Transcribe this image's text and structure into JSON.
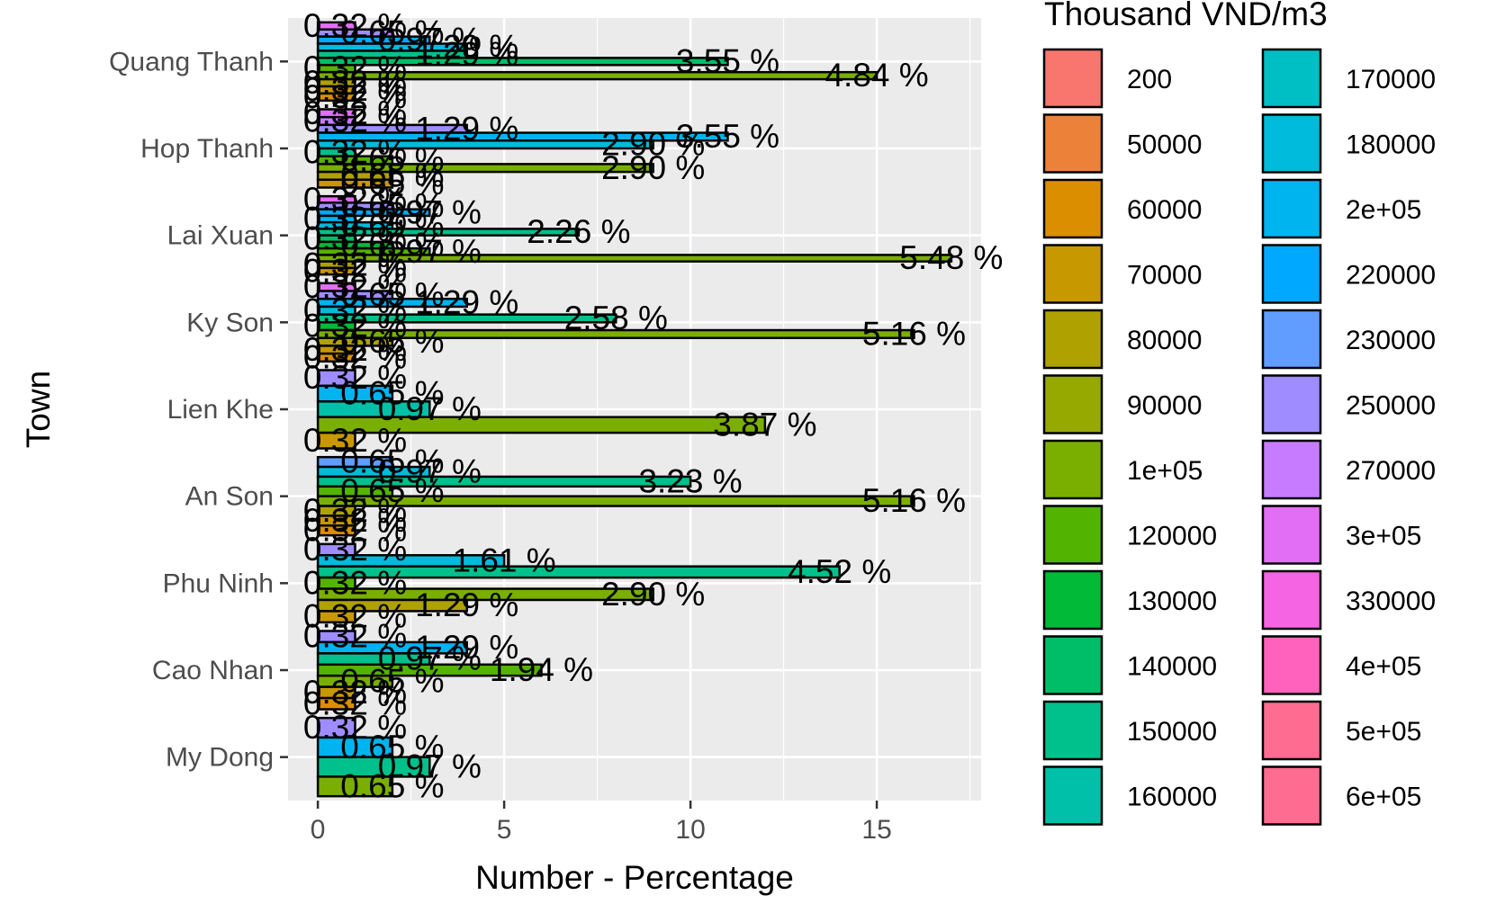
{
  "chart_data": {
    "type": "bar",
    "orientation": "horizontal",
    "xlabel": "Number - Percentage",
    "ylabel": "Town",
    "xlim": [
      -0.8,
      17.8
    ],
    "x_ticks": [
      0,
      5,
      10,
      15
    ],
    "grid": true,
    "categories": [
      "Quang Thanh",
      "Hop Thanh",
      "Lai Xuan",
      "Ky Son",
      "Lien Khe",
      "An Son",
      "Phu Ninh",
      "Cao Nhan",
      "My Dong"
    ],
    "legend": {
      "title": "Thousand VND/m3",
      "position": "right",
      "items": [
        {
          "label": "200",
          "color": "#F8766D"
        },
        {
          "label": "50000",
          "color": "#EC8239"
        },
        {
          "label": "60000",
          "color": "#DB8E00"
        },
        {
          "label": "70000",
          "color": "#C79800"
        },
        {
          "label": "80000",
          "color": "#AFA100"
        },
        {
          "label": "90000",
          "color": "#96A900"
        },
        {
          "label": "1e+05",
          "color": "#7AAF00"
        },
        {
          "label": "120000",
          "color": "#53B400"
        },
        {
          "label": "130000",
          "color": "#00BA38"
        },
        {
          "label": "140000",
          "color": "#00BE67"
        },
        {
          "label": "150000",
          "color": "#00C08B"
        },
        {
          "label": "160000",
          "color": "#00C0A9"
        },
        {
          "label": "170000",
          "color": "#00BFC4"
        },
        {
          "label": "180000",
          "color": "#00BBDB"
        },
        {
          "label": "2e+05",
          "color": "#00B4EF"
        },
        {
          "label": "220000",
          "color": "#00A9FF"
        },
        {
          "label": "230000",
          "color": "#619CFF"
        },
        {
          "label": "250000",
          "color": "#9F8CFF"
        },
        {
          "label": "270000",
          "color": "#C77CFF"
        },
        {
          "label": "3e+05",
          "color": "#E36EF6"
        },
        {
          "label": "330000",
          "color": "#F564E3"
        },
        {
          "label": "4e+05",
          "color": "#FF62BC"
        },
        {
          "label": "5e+05",
          "color": "#FF6C91"
        },
        {
          "label": "6e+05",
          "color": "#FF6C91"
        }
      ]
    },
    "series": [
      {
        "town": "Quang Thanh",
        "bars": [
          {
            "price": "300000",
            "value": 1,
            "label": "0.32 %"
          },
          {
            "price": "250000",
            "value": 2,
            "label": "0.65 %"
          },
          {
            "price": "220000",
            "value": 3,
            "label": "0.97 %"
          },
          {
            "price": "180000",
            "value": 4,
            "label": "1.29 %"
          },
          {
            "price": "150000",
            "value": 4,
            "label": "1.29 %"
          },
          {
            "price": "140000",
            "value": 11,
            "label": "3.55 %"
          },
          {
            "price": "120000",
            "value": 1,
            "label": "0.32 %"
          },
          {
            "price": "100000",
            "value": 15,
            "label": "4.84 %"
          },
          {
            "price": "80000",
            "value": 1,
            "label": "0.32 %"
          },
          {
            "price": "70000",
            "value": 1,
            "label": "0.32 %"
          },
          {
            "price": "60000",
            "value": 1,
            "label": "0.32 %"
          }
        ]
      },
      {
        "town": "Hop Thanh",
        "bars": [
          {
            "price": "300000",
            "value": 1,
            "label": "0.32 %"
          },
          {
            "price": "270000",
            "value": 1,
            "label": "0.32 %"
          },
          {
            "price": "250000",
            "value": 4,
            "label": "1.29 %"
          },
          {
            "price": "200000",
            "value": 11,
            "label": "3.55 %"
          },
          {
            "price": "180000",
            "value": 9,
            "label": "2.90 %"
          },
          {
            "price": "150000",
            "value": 1,
            "label": "0.32 %"
          },
          {
            "price": "120000",
            "value": 2,
            "label": "0.65 %"
          },
          {
            "price": "100000",
            "value": 9,
            "label": "2.90 %"
          },
          {
            "price": "80000",
            "value": 2,
            "label": "0.65 %"
          },
          {
            "price": "70000",
            "value": 2,
            "label": "0.65 %"
          }
        ]
      },
      {
        "town": "Lai Xuan",
        "bars": [
          {
            "price": "300000",
            "value": 1,
            "label": "0.32 %"
          },
          {
            "price": "250000",
            "value": 2,
            "label": "0.65 %"
          },
          {
            "price": "220000",
            "value": 3,
            "label": "0.97 %"
          },
          {
            "price": "200000",
            "value": 1,
            "label": "0.32 %"
          },
          {
            "price": "180000",
            "value": 2,
            "label": "0.65 %"
          },
          {
            "price": "150000",
            "value": 7,
            "label": "2.26 %"
          },
          {
            "price": "140000",
            "value": 1,
            "label": "0.32 %"
          },
          {
            "price": "130000",
            "value": 2,
            "label": "0.65 %"
          },
          {
            "price": "120000",
            "value": 3,
            "label": "0.97 %"
          },
          {
            "price": "100000",
            "value": 17,
            "label": "5.48 %"
          },
          {
            "price": "80000",
            "value": 1,
            "label": "0.32 %"
          },
          {
            "price": "70000",
            "value": 1,
            "label": "0.32 %"
          }
        ]
      },
      {
        "town": "Ky Son",
        "bars": [
          {
            "price": "300000",
            "value": 1,
            "label": "0.32 %"
          },
          {
            "price": "250000",
            "value": 2,
            "label": "0.65 %"
          },
          {
            "price": "200000",
            "value": 4,
            "label": "1.29 %"
          },
          {
            "price": "180000",
            "value": 1,
            "label": "0.32 %"
          },
          {
            "price": "150000",
            "value": 8,
            "label": "2.58 %"
          },
          {
            "price": "130000",
            "value": 1,
            "label": "0.32 %"
          },
          {
            "price": "100000",
            "value": 16,
            "label": "5.16 %"
          },
          {
            "price": "80000",
            "value": 2,
            "label": "0.65 %"
          },
          {
            "price": "70000",
            "value": 1,
            "label": "0.32 %"
          },
          {
            "price": "60000",
            "value": 1,
            "label": "0.32 %"
          }
        ]
      },
      {
        "town": "Lien Khe",
        "bars": [
          {
            "price": "250000",
            "value": 1,
            "label": "0.32 %"
          },
          {
            "price": "200000",
            "value": 2,
            "label": "0.65 %"
          },
          {
            "price": "160000",
            "value": 3,
            "label": "0.97 %"
          },
          {
            "price": "100000",
            "value": 12,
            "label": "3.87 %"
          },
          {
            "price": "70000",
            "value": 1,
            "label": "0.32 %"
          }
        ]
      },
      {
        "town": "An Son",
        "bars": [
          {
            "price": "230000",
            "value": 2,
            "label": "0.65 %"
          },
          {
            "price": "180000",
            "value": 3,
            "label": "0.97 %"
          },
          {
            "price": "150000",
            "value": 10,
            "label": "3.23 %"
          },
          {
            "price": "120000",
            "value": 2,
            "label": "0.65 %"
          },
          {
            "price": "100000",
            "value": 16,
            "label": "5.16 %"
          },
          {
            "price": "80000",
            "value": 1,
            "label": "0.32 %"
          },
          {
            "price": "70000",
            "value": 1,
            "label": "0.32 %"
          },
          {
            "price": "60000",
            "value": 1,
            "label": "0.32 %"
          }
        ]
      },
      {
        "town": "Phu Ninh",
        "bars": [
          {
            "price": "250000",
            "value": 1,
            "label": "0.32 %"
          },
          {
            "price": "180000",
            "value": 5,
            "label": "1.61 %"
          },
          {
            "price": "150000",
            "value": 14,
            "label": "4.52 %"
          },
          {
            "price": "120000",
            "value": 1,
            "label": "0.32 %"
          },
          {
            "price": "100000",
            "value": 9,
            "label": "2.90 %"
          },
          {
            "price": "80000",
            "value": 4,
            "label": "1.29 %"
          },
          {
            "price": "70000",
            "value": 1,
            "label": "0.32 %"
          }
        ]
      },
      {
        "town": "Cao Nhan",
        "bars": [
          {
            "price": "250000",
            "value": 1,
            "label": "0.32 %"
          },
          {
            "price": "200000",
            "value": 4,
            "label": "1.29 %"
          },
          {
            "price": "150000",
            "value": 3,
            "label": "0.97 %"
          },
          {
            "price": "120000",
            "value": 6,
            "label": "1.94 %"
          },
          {
            "price": "100000",
            "value": 2,
            "label": "0.65 %"
          },
          {
            "price": "70000",
            "value": 1,
            "label": "0.32 %"
          },
          {
            "price": "60000",
            "value": 1,
            "label": "0.32 %"
          }
        ]
      },
      {
        "town": "My Dong",
        "bars": [
          {
            "price": "250000",
            "value": 1,
            "label": "0.32 %"
          },
          {
            "price": "200000",
            "value": 2,
            "label": "0.65 %"
          },
          {
            "price": "150000",
            "value": 3,
            "label": "0.97 %"
          },
          {
            "price": "100000",
            "value": 2,
            "label": "0.65 %"
          }
        ]
      }
    ]
  }
}
